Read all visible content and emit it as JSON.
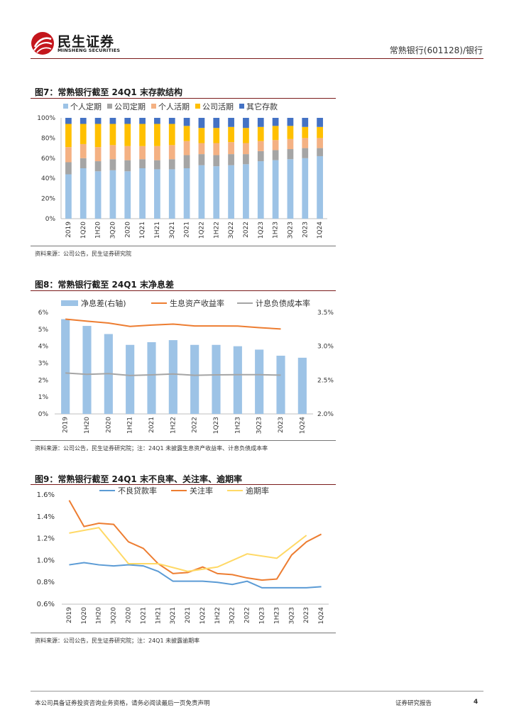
{
  "header": {
    "logo_cn": "民生证券",
    "logo_en": "MINSHENG SECURITIES",
    "doc_title": "常熟银行(601128)/银行"
  },
  "figures": [
    {
      "title": "图7：常熟银行截至 24Q1 末存款结构",
      "source": "资料来源：公司公告，民生证券研究院"
    },
    {
      "title": "图8：常熟银行截至 24Q1 末净息差",
      "source": "资料来源：公司公告，民生证券研究院；注：24Q1 未披露生息资产收益率、计息负债成本率"
    },
    {
      "title": "图9：常熟银行截至 24Q1 末不良率、关注率、逾期率",
      "source": "资料来源：公司公告，民生证券研究院；注：24Q1 未披露逾期率"
    }
  ],
  "footer": {
    "disclaimer": "本公司具备证券投资咨询业务资格，请务必阅读最后一页免责声明",
    "report_type": "证券研究报告",
    "page": "4"
  },
  "colors": {
    "brand_red": "#c4161c",
    "rule": "#7a1b1b",
    "blue_light": "#9dc3e6",
    "gray": "#a5a5a5",
    "salmon": "#f4b183",
    "gold": "#ffc000",
    "blue_dark": "#4472c4",
    "orange": "#ed7d31",
    "line_blue": "#5b9bd5",
    "line_yellow": "#ffd966"
  },
  "chart_data": [
    {
      "type": "bar",
      "stacked": true,
      "title": "常熟银行截至 24Q1 末存款结构",
      "categories": [
        "2019",
        "1Q20",
        "1H20",
        "3Q20",
        "2020",
        "1Q21",
        "1H21",
        "3Q21",
        "2021",
        "1Q22",
        "1H22",
        "3Q22",
        "2022",
        "1Q23",
        "1H23",
        "3Q23",
        "2023",
        "1Q24"
      ],
      "ylim": [
        0,
        100
      ],
      "yticks": [
        "0%",
        "20%",
        "40%",
        "60%",
        "80%",
        "100%"
      ],
      "legend_position": "top",
      "series": [
        {
          "name": "个人定期",
          "color": "#9dc3e6",
          "values": [
            44,
            50,
            47,
            48,
            47,
            50,
            49,
            49,
            50,
            53,
            52,
            53,
            54,
            57,
            58,
            59,
            60,
            62
          ]
        },
        {
          "name": "公司定期",
          "color": "#a5a5a5",
          "values": [
            12,
            10,
            10,
            11,
            11,
            9,
            9,
            10,
            13,
            11,
            11,
            11,
            10,
            10,
            10,
            10,
            10,
            8
          ]
        },
        {
          "name": "个人活期",
          "color": "#f4b183",
          "values": [
            15,
            14,
            14,
            14,
            14,
            13,
            14,
            14,
            14,
            11,
            12,
            12,
            11,
            10,
            10,
            10,
            10,
            10
          ]
        },
        {
          "name": "公司活期",
          "color": "#ffc000",
          "values": [
            23,
            20,
            23,
            21,
            22,
            22,
            22,
            21,
            15,
            15,
            15,
            15,
            15,
            14,
            14,
            13,
            11,
            11
          ]
        },
        {
          "name": "其它存款",
          "color": "#4472c4",
          "values": [
            6,
            6,
            6,
            6,
            6,
            6,
            6,
            6,
            8,
            10,
            10,
            9,
            10,
            9,
            8,
            8,
            9,
            9
          ]
        }
      ]
    },
    {
      "type": "bar+line",
      "title": "常熟银行截至 24Q1 末净息差",
      "categories": [
        "2019",
        "1H20",
        "2020",
        "1H21",
        "2021",
        "1H22",
        "2022",
        "1Q23",
        "1H23",
        "3Q23",
        "2023",
        "1Q24"
      ],
      "left_ylim": [
        0,
        6
      ],
      "left_yticks": [
        "0%",
        "1%",
        "2%",
        "3%",
        "4%",
        "5%",
        "6%"
      ],
      "right_ylim": [
        2.0,
        3.5
      ],
      "right_yticks": [
        "2.0%",
        "2.5%",
        "3.0%",
        "3.5%"
      ],
      "legend_position": "top",
      "bars": {
        "name": "净息差(右轴)",
        "color": "#9dc3e6",
        "values": [
          3.4,
          3.3,
          3.18,
          3.02,
          3.06,
          3.09,
          3.02,
          3.02,
          3.0,
          2.95,
          2.86,
          2.83
        ]
      },
      "lines": [
        {
          "name": "生息资产收益率",
          "color": "#ed7d31",
          "values": [
            5.6,
            5.48,
            5.37,
            5.17,
            5.25,
            5.31,
            5.2,
            5.2,
            5.19,
            5.1,
            5.02,
            null
          ]
        },
        {
          "name": "计息负债成本率",
          "color": "#a5a5a5",
          "values": [
            2.42,
            2.34,
            2.38,
            2.27,
            2.31,
            2.36,
            2.28,
            2.31,
            2.32,
            2.32,
            2.29,
            null
          ]
        }
      ]
    },
    {
      "type": "line",
      "title": "常熟银行截至 24Q1 末不良率、关注率、逾期率",
      "categories": [
        "2019",
        "1Q20",
        "1H20",
        "3Q20",
        "2020",
        "1Q21",
        "1H21",
        "3Q21",
        "2021",
        "1Q22",
        "1H22",
        "3Q22",
        "2022",
        "1Q23",
        "1H23",
        "3Q23",
        "2023",
        "1Q24"
      ],
      "ylim": [
        0.6,
        1.6
      ],
      "yticks": [
        "0.6%",
        "0.8%",
        "1.0%",
        "1.2%",
        "1.4%",
        "1.6%"
      ],
      "legend_position": "top",
      "series": [
        {
          "name": "不良贷款率",
          "color": "#5b9bd5",
          "values": [
            0.96,
            0.98,
            0.96,
            0.95,
            0.96,
            0.95,
            0.9,
            0.81,
            0.81,
            0.81,
            0.8,
            0.78,
            0.81,
            0.75,
            0.75,
            0.75,
            0.75,
            0.76
          ]
        },
        {
          "name": "关注率",
          "color": "#ed7d31",
          "values": [
            1.55,
            1.31,
            1.34,
            1.33,
            1.17,
            1.11,
            0.97,
            0.88,
            0.89,
            0.94,
            0.88,
            0.87,
            0.84,
            0.82,
            0.83,
            1.05,
            1.17,
            1.24
          ]
        },
        {
          "name": "逾期率",
          "color": "#ffd966",
          "values": [
            1.25,
            null,
            1.3,
            null,
            0.97,
            null,
            0.97,
            null,
            0.9,
            null,
            0.94,
            null,
            1.06,
            null,
            1.02,
            null,
            1.23,
            null
          ]
        }
      ]
    }
  ]
}
